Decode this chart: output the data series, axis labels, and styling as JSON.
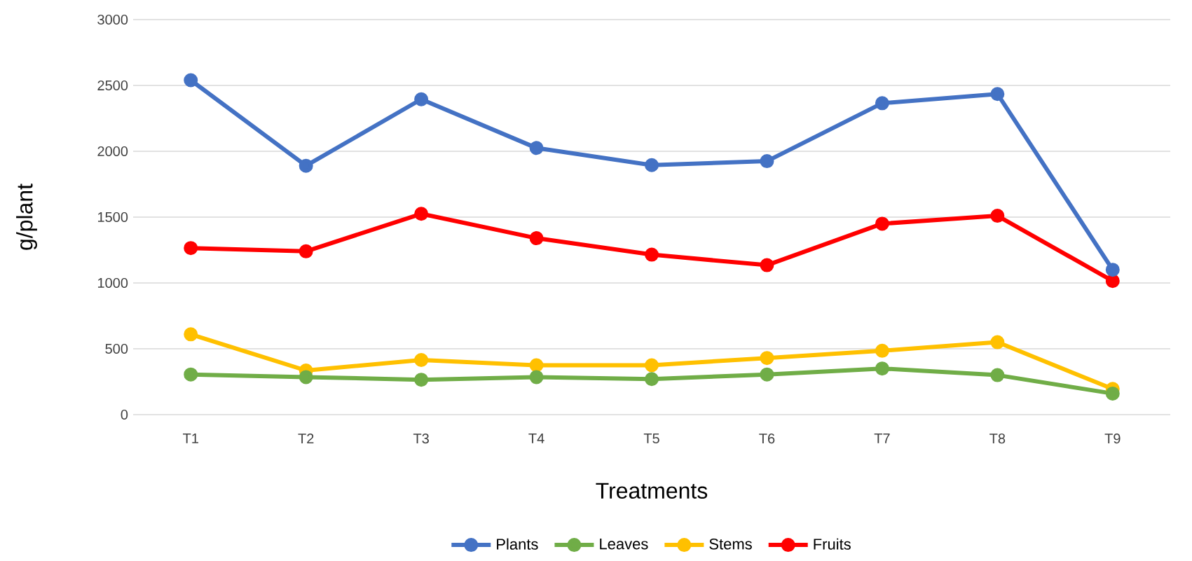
{
  "chart_data": {
    "type": "line",
    "xlabel": "Treatments",
    "ylabel": "g/plant",
    "categories": [
      "T1",
      "T2",
      "T3",
      "T4",
      "T5",
      "T6",
      "T7",
      "T8",
      "T9"
    ],
    "series": [
      {
        "name": "Plants",
        "color": "#4472c4",
        "values": [
          2540,
          1890,
          2395,
          2025,
          1895,
          1925,
          2365,
          2435,
          1100
        ]
      },
      {
        "name": "Leaves",
        "color": "#70ad47",
        "values": [
          305,
          285,
          265,
          285,
          270,
          305,
          350,
          300,
          160
        ]
      },
      {
        "name": "Stems",
        "color": "#ffc000",
        "values": [
          610,
          335,
          415,
          375,
          375,
          430,
          485,
          550,
          195
        ]
      },
      {
        "name": "Fruits",
        "color": "#ff0000",
        "values": [
          1265,
          1240,
          1525,
          1340,
          1215,
          1135,
          1450,
          1510,
          1015
        ]
      }
    ],
    "ylim": [
      0,
      3000
    ],
    "yticks": [
      0,
      500,
      1000,
      1500,
      2000,
      2500,
      3000
    ],
    "grid": "y",
    "legend": "bottom",
    "marker": "circle",
    "line_style": "solid"
  }
}
